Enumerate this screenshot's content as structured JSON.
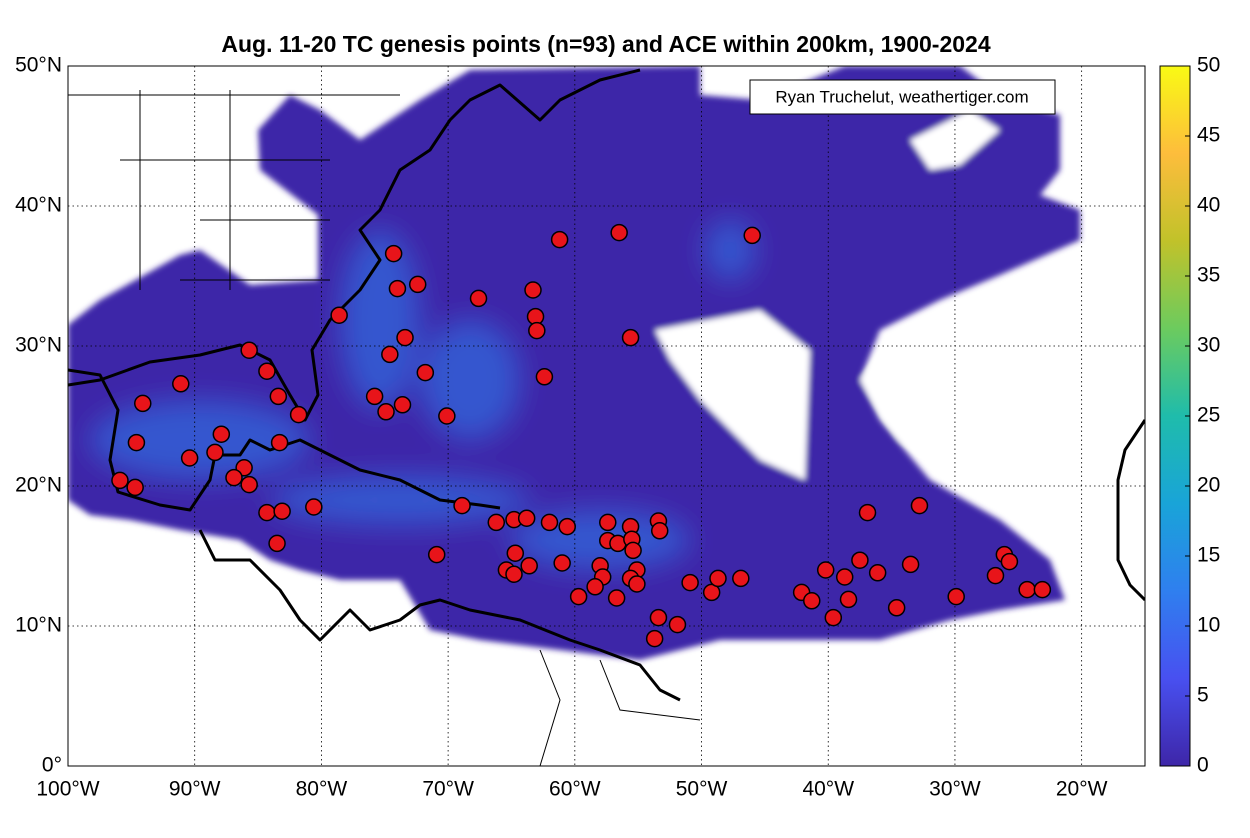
{
  "chart_data": {
    "type": "scatter",
    "title": "Aug. 11-20 TC genesis points (n=93) and ACE within 200km, 1900-2024",
    "annotation": "Ryan Truchelut, weathertiger.com",
    "xlim": [
      -100,
      -15
    ],
    "ylim": [
      0,
      50
    ],
    "xticks": [
      {
        "value": -100,
        "label": "100°W"
      },
      {
        "value": -90,
        "label": "90°W"
      },
      {
        "value": -80,
        "label": "80°W"
      },
      {
        "value": -70,
        "label": "70°W"
      },
      {
        "value": -60,
        "label": "60°W"
      },
      {
        "value": -50,
        "label": "50°W"
      },
      {
        "value": -40,
        "label": "40°W"
      },
      {
        "value": -30,
        "label": "30°W"
      },
      {
        "value": -20,
        "label": "20°W"
      }
    ],
    "yticks": [
      {
        "value": 0,
        "label": "0°"
      },
      {
        "value": 10,
        "label": "10°N"
      },
      {
        "value": 20,
        "label": "20°N"
      },
      {
        "value": 30,
        "label": "30°N"
      },
      {
        "value": 40,
        "label": "40°N"
      },
      {
        "value": 50,
        "label": "50°N"
      }
    ],
    "grid": true,
    "series": [
      {
        "color": "#e8141a",
        "x": [
          -74.3,
          -74.0,
          -72.4,
          -78.6,
          -73.4,
          -74.6,
          -71.8,
          -75.8,
          -73.6,
          -74.9,
          -70.1,
          -67.6,
          -63.3,
          -63.1,
          -63.0,
          -62.4,
          -61.2,
          -56.5,
          -46.0,
          -55.6,
          -85.7,
          -84.3,
          -83.4,
          -81.8,
          -91.1,
          -94.1,
          -94.6,
          -87.9,
          -83.3,
          -90.4,
          -88.4,
          -86.1,
          -86.9,
          -85.7,
          -95.9,
          -94.7,
          -84.3,
          -83.1,
          -80.6,
          -83.5,
          -70.9,
          -68.9,
          -66.2,
          -64.8,
          -63.8,
          -64.7,
          -65.4,
          -64.8,
          -63.6,
          -62.0,
          -60.6,
          -61.0,
          -59.7,
          -57.4,
          -57.4,
          -56.6,
          -55.6,
          -55.5,
          -55.4,
          -58.0,
          -57.8,
          -55.1,
          -55.6,
          -55.1,
          -56.7,
          -53.4,
          -53.3,
          -53.4,
          -51.9,
          -53.7,
          -50.9,
          -49.2,
          -48.7,
          -46.9,
          -42.1,
          -41.3,
          -40.2,
          -38.7,
          -38.4,
          -39.6,
          -37.5,
          -36.1,
          -36.9,
          -34.6,
          -33.5,
          -32.8,
          -29.9,
          -26.8,
          -26.1,
          -25.7,
          -24.3,
          -23.1,
          -58.4
        ],
        "values": [
          36.6,
          34.1,
          34.4,
          32.2,
          30.6,
          29.4,
          28.1,
          26.4,
          25.8,
          25.3,
          25.0,
          33.4,
          34.0,
          32.1,
          31.1,
          27.8,
          37.6,
          38.1,
          37.9,
          30.6,
          29.7,
          28.2,
          26.4,
          25.1,
          27.3,
          25.9,
          23.1,
          23.7,
          23.1,
          22.0,
          22.4,
          21.3,
          20.6,
          20.1,
          20.4,
          19.9,
          18.1,
          18.2,
          18.5,
          15.9,
          15.1,
          18.6,
          17.4,
          17.6,
          17.7,
          15.2,
          14.0,
          13.7,
          14.3,
          17.4,
          17.1,
          14.5,
          12.1,
          17.4,
          16.1,
          15.9,
          17.1,
          16.2,
          15.4,
          14.3,
          13.5,
          14.0,
          13.4,
          13.0,
          12.0,
          17.5,
          16.8,
          10.6,
          10.1,
          9.1,
          13.1,
          12.4,
          13.4,
          13.4,
          12.4,
          11.8,
          14.0,
          13.5,
          11.9,
          10.6,
          14.7,
          13.8,
          18.1,
          11.3,
          14.4,
          18.6,
          12.1,
          13.6,
          15.1,
          14.6,
          12.6,
          12.6,
          12.8
        ]
      }
    ],
    "colorbar": {
      "lim": [
        0,
        50
      ],
      "ticks": [
        0,
        5,
        10,
        15,
        20,
        25,
        30,
        35,
        40,
        45,
        50
      ],
      "colors": [
        "#3e26a8",
        "#4850f0",
        "#2f7fef",
        "#19a4d8",
        "#1fbcab",
        "#6ccb5e",
        "#c1c22a",
        "#fdbd3c",
        "#f9fa14"
      ]
    }
  }
}
